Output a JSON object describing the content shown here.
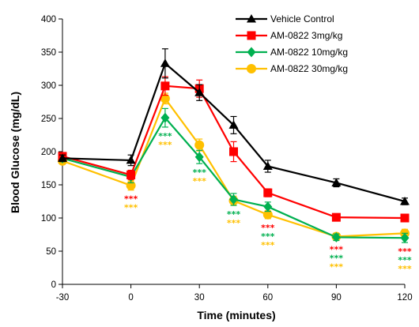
{
  "chart_data": {
    "type": "line",
    "title": "",
    "xlabel": "Time (minutes)",
    "ylabel": "Blood Glucose (mg/dL)",
    "x": [
      -30,
      0,
      15,
      30,
      45,
      60,
      90,
      120
    ],
    "x_ticks": [
      "-30",
      "0",
      "30",
      "60",
      "90",
      "120"
    ],
    "x_tick_values": [
      -30,
      0,
      30,
      60,
      90,
      120
    ],
    "xlim": [
      -30,
      120
    ],
    "ylim": [
      0,
      400
    ],
    "y_ticks": [
      "0",
      "50",
      "100",
      "150",
      "200",
      "250",
      "300",
      "350",
      "400"
    ],
    "y_tick_values": [
      0,
      50,
      100,
      150,
      200,
      250,
      300,
      350,
      400
    ],
    "grid": false,
    "legend_position": "top-right",
    "series": [
      {
        "name": "Vehicle Control",
        "color": "#000000",
        "marker": "triangle",
        "values": [
          190,
          187,
          333,
          289,
          240,
          178,
          153,
          125
        ],
        "errors": [
          5,
          8,
          22,
          12,
          13,
          9,
          6,
          5
        ]
      },
      {
        "name": "AM-0822  3mg/kg",
        "color": "#ff0000",
        "marker": "square",
        "values": [
          193,
          165,
          299,
          295,
          200,
          138,
          101,
          100
        ],
        "errors": [
          5,
          7,
          14,
          13,
          15,
          6,
          5,
          5
        ]
      },
      {
        "name": "AM-0822 10mg/kg",
        "color": "#00b050",
        "marker": "diamond",
        "values": [
          190,
          162,
          251,
          192,
          128,
          117,
          71,
          70
        ],
        "errors": [
          5,
          9,
          14,
          10,
          9,
          7,
          5,
          7
        ]
      },
      {
        "name": "AM-0822 30mg/kg",
        "color": "#ffc000",
        "marker": "circle",
        "values": [
          186,
          149,
          280,
          210,
          126,
          105,
          72,
          77
        ],
        "errors": [
          5,
          7,
          8,
          9,
          7,
          6,
          5,
          6
        ]
      }
    ],
    "significance_annotations": [
      {
        "x": 0,
        "stars": [
          {
            "text": "***",
            "color": "#ff0000"
          },
          {
            "text": "***",
            "color": "#ffc000"
          }
        ]
      },
      {
        "x": 15,
        "stars": [
          {
            "text": "***",
            "color": "#00b050"
          },
          {
            "text": "***",
            "color": "#ffc000"
          }
        ]
      },
      {
        "x": 30,
        "stars": [
          {
            "text": "***",
            "color": "#00b050"
          },
          {
            "text": "***",
            "color": "#ffc000"
          }
        ]
      },
      {
        "x": 45,
        "stars": [
          {
            "text": "***",
            "color": "#00b050"
          },
          {
            "text": "***",
            "color": "#ffc000"
          }
        ]
      },
      {
        "x": 60,
        "stars": [
          {
            "text": "***",
            "color": "#ff0000"
          },
          {
            "text": "***",
            "color": "#00b050"
          },
          {
            "text": "***",
            "color": "#ffc000"
          }
        ]
      },
      {
        "x": 90,
        "stars": [
          {
            "text": "***",
            "color": "#ff0000"
          },
          {
            "text": "***",
            "color": "#00b050"
          },
          {
            "text": "***",
            "color": "#ffc000"
          }
        ]
      },
      {
        "x": 120,
        "stars": [
          {
            "text": "***",
            "color": "#ff0000"
          },
          {
            "text": "***",
            "color": "#00b050"
          },
          {
            "text": "***",
            "color": "#ffc000"
          }
        ]
      }
    ]
  }
}
